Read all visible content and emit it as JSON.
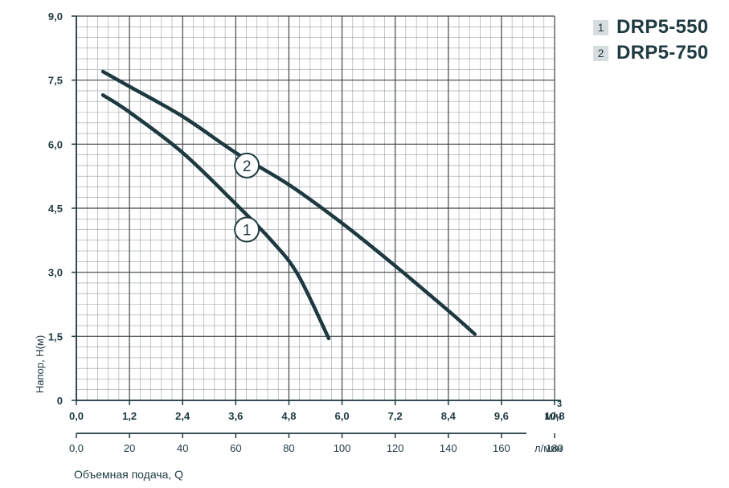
{
  "chart_data": {
    "type": "line",
    "x_unit_top": "м",
    "x_unit_top_sup": "3",
    "x_unit_top_suffix": "/ч",
    "x_unit_bottom": "л/мин",
    "xlabel": "Объемная подача, Q",
    "ylabel": "Напор, H(м)",
    "xlim": [
      0,
      10.8
    ],
    "ylim": [
      0,
      9.0
    ],
    "x_ticks_m3h": [
      "0,0",
      "1,2",
      "2,4",
      "3,6",
      "4,8",
      "6,0",
      "7,2",
      "8,4",
      "9,6",
      "10,8"
    ],
    "x_ticks_lmin": [
      "0,0",
      "20",
      "40",
      "60",
      "80",
      "100",
      "120",
      "140",
      "160",
      "180"
    ],
    "y_ticks": [
      "0",
      "1,5",
      "3,0",
      "4,5",
      "6,0",
      "7,5",
      "9,0"
    ],
    "grid": true,
    "colors": {
      "curve": "#1e3a40",
      "grid": "#4a4f52",
      "axis": "#1f3a40"
    },
    "series": [
      {
        "name": "DRP5-550",
        "label": "1",
        "x": [
          0.6,
          1.2,
          2.4,
          3.6,
          4.4,
          5.0,
          5.7
        ],
        "y": [
          7.15,
          6.75,
          5.8,
          4.6,
          3.75,
          2.95,
          1.45
        ]
      },
      {
        "name": "DRP5-750",
        "label": "2",
        "x": [
          0.6,
          1.2,
          2.4,
          3.6,
          4.8,
          6.0,
          7.2,
          8.4,
          9.0
        ],
        "y": [
          7.7,
          7.35,
          6.65,
          5.8,
          5.05,
          4.15,
          3.15,
          2.1,
          1.55
        ]
      }
    ],
    "legend": {
      "placement": "top-right"
    }
  }
}
